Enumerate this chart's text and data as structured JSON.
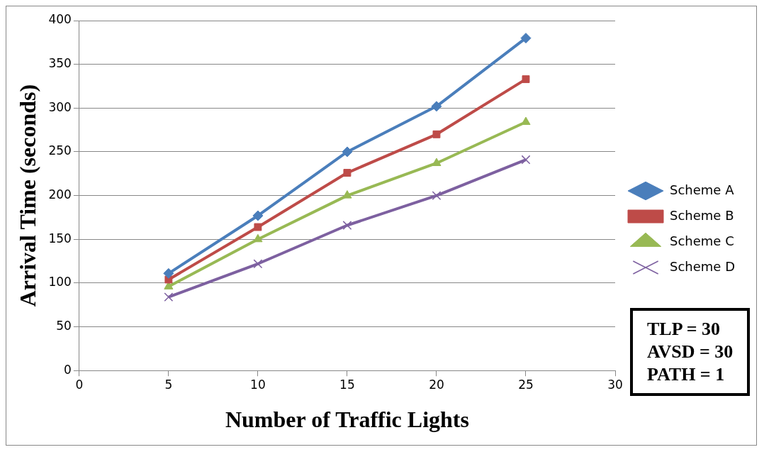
{
  "chart_data": {
    "type": "line",
    "xlabel": "Number of Traffic Lights",
    "ylabel": "Arrival Time (seconds)",
    "x": [
      5,
      10,
      15,
      20,
      25
    ],
    "series": [
      {
        "name": "Scheme A",
        "color": "#4a7ebb",
        "marker": "diamond",
        "values": [
          111,
          177,
          250,
          302,
          380
        ]
      },
      {
        "name": "Scheme B",
        "color": "#be4b48",
        "marker": "square",
        "values": [
          104,
          164,
          226,
          270,
          333
        ]
      },
      {
        "name": "Scheme C",
        "color": "#98b954",
        "marker": "triangle",
        "values": [
          96,
          150,
          200,
          237,
          284
        ]
      },
      {
        "name": "Scheme D",
        "color": "#7d60a0",
        "marker": "cross",
        "values": [
          84,
          122,
          166,
          200,
          241
        ]
      }
    ],
    "xlim": [
      0,
      30
    ],
    "xticks": [
      0,
      5,
      10,
      15,
      20,
      25,
      30
    ],
    "ylim": [
      0,
      400
    ],
    "yticks": [
      0,
      50,
      100,
      150,
      200,
      250,
      300,
      350,
      400
    ],
    "grid": "y",
    "legend": "right",
    "annotations": [
      "TLP = 30\nAVSD = 30\nPATH = 1"
    ]
  }
}
